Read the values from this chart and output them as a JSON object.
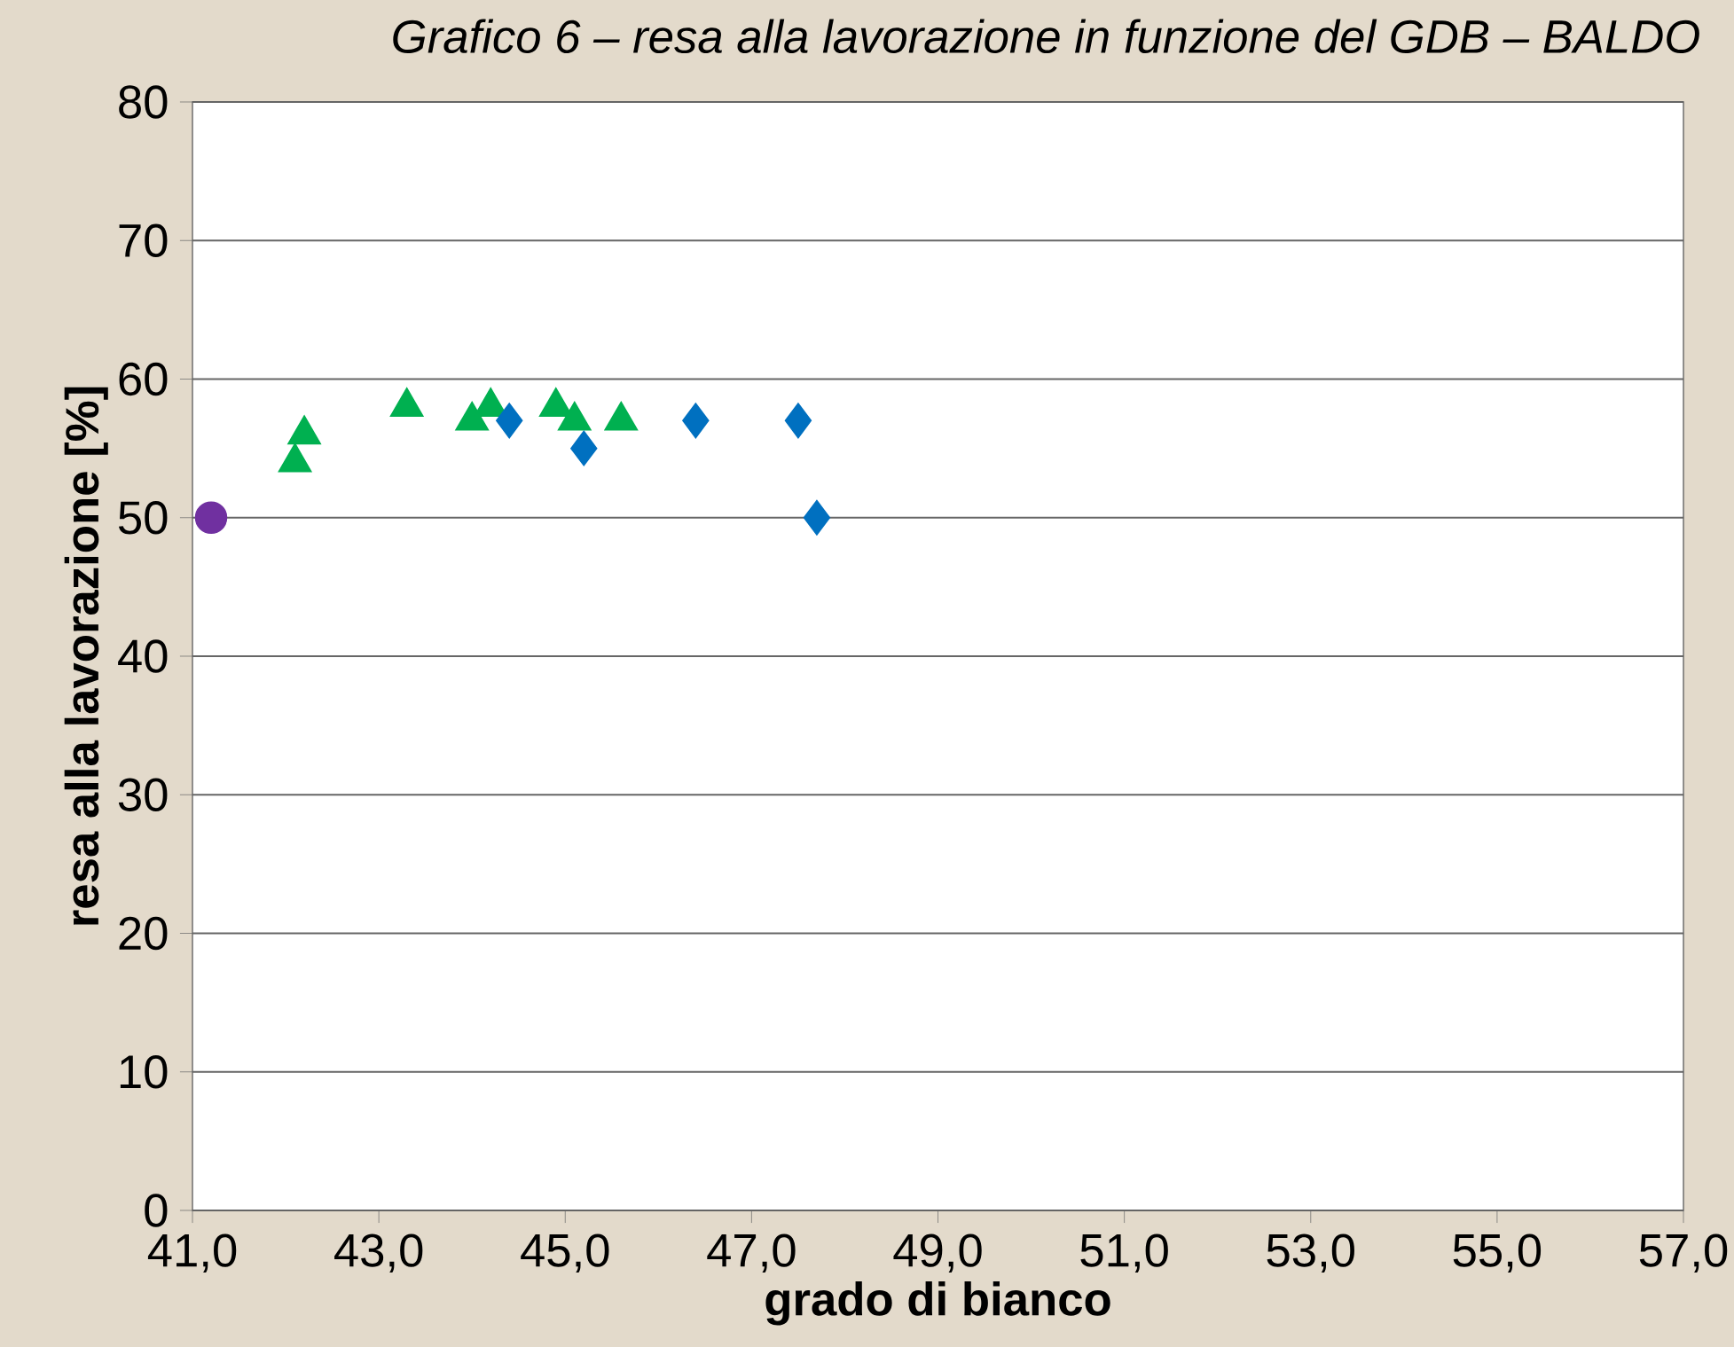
{
  "chart_data": {
    "type": "scatter",
    "title": "Grafico 6 – resa alla lavorazione in funzione del GDB – BALDO",
    "xlabel": "grado di bianco",
    "ylabel": "resa alla lavorazione [%]",
    "xlim": [
      41,
      57
    ],
    "ylim": [
      0,
      80
    ],
    "xticks": [
      {
        "value": 41,
        "label": "41,0"
      },
      {
        "value": 43,
        "label": "43,0"
      },
      {
        "value": 45,
        "label": "45,0"
      },
      {
        "value": 47,
        "label": "47,0"
      },
      {
        "value": 49,
        "label": "49,0"
      },
      {
        "value": 51,
        "label": "51,0"
      },
      {
        "value": 53,
        "label": "53,0"
      },
      {
        "value": 55,
        "label": "55,0"
      },
      {
        "value": 57,
        "label": "57,0"
      }
    ],
    "yticks": [
      0,
      10,
      20,
      30,
      40,
      50,
      60,
      70,
      80
    ],
    "grid": "y",
    "series": [
      {
        "color": "#7030a0",
        "marker": "circle",
        "x": [
          41.2
        ],
        "values": [
          50
        ]
      },
      {
        "color": "#00b050",
        "marker": "triangle",
        "x": [
          42.1,
          42.2,
          43.3,
          44.0,
          44.2,
          44.9,
          45.1,
          45.6
        ],
        "values": [
          54,
          56,
          58,
          57,
          58,
          58,
          57,
          57
        ]
      },
      {
        "color": "#0070c0",
        "marker": "diamond",
        "x": [
          44.4,
          45.2,
          46.4,
          47.5,
          47.7
        ],
        "values": [
          57,
          55,
          57,
          57,
          50
        ]
      }
    ]
  }
}
